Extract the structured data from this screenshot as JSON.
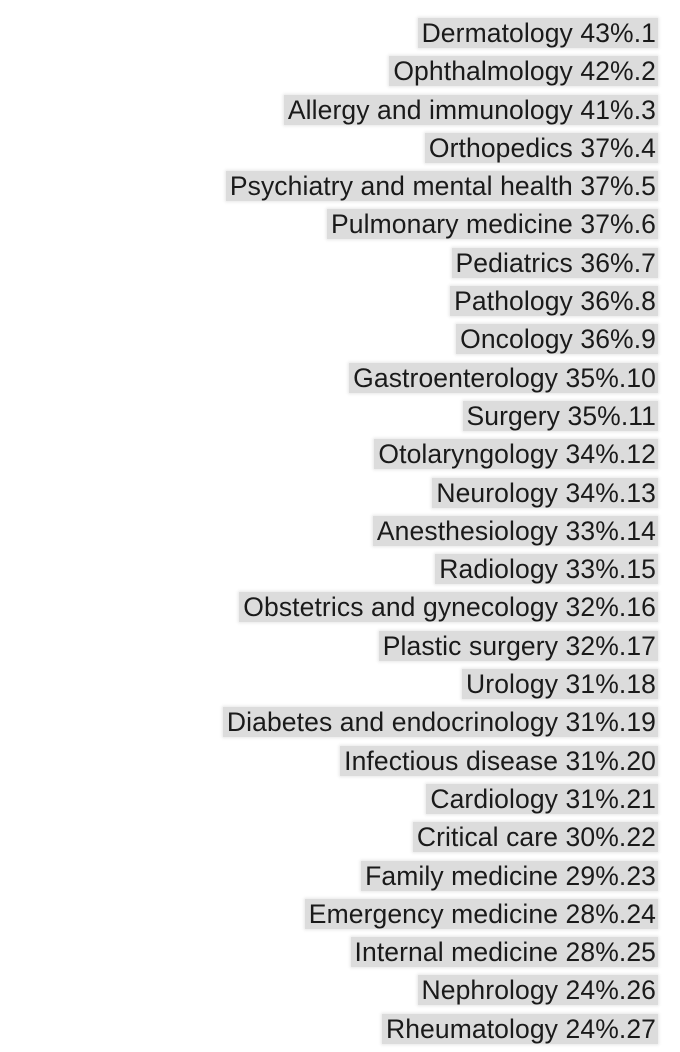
{
  "rows": [
    {
      "specialty": "Dermatology",
      "value": "43%.1"
    },
    {
      "specialty": "Ophthalmology",
      "value": "42%.2"
    },
    {
      "specialty": "Allergy and immunology",
      "value": "41%.3"
    },
    {
      "specialty": "Orthopedics",
      "value": "37%.4"
    },
    {
      "specialty": "Psychiatry and mental health",
      "value": "37%.5"
    },
    {
      "specialty": "Pulmonary medicine",
      "value": "37%.6"
    },
    {
      "specialty": "Pediatrics",
      "value": "36%.7"
    },
    {
      "specialty": "Pathology",
      "value": "36%.8"
    },
    {
      "specialty": "Oncology",
      "value": "36%.9"
    },
    {
      "specialty": "Gastroenterology",
      "value": "35%.10"
    },
    {
      "specialty": "Surgery",
      "value": "35%.11"
    },
    {
      "specialty": "Otolaryngology",
      "value": "34%.12"
    },
    {
      "specialty": "Neurology",
      "value": "34%.13"
    },
    {
      "specialty": "Anesthesiology",
      "value": "33%.14"
    },
    {
      "specialty": "Radiology",
      "value": "33%.15"
    },
    {
      "specialty": "Obstetrics and gynecology",
      "value": "32%.16"
    },
    {
      "specialty": "Plastic surgery",
      "value": "32%.17"
    },
    {
      "specialty": "Urology",
      "value": "31%.18"
    },
    {
      "specialty": "Diabetes and endocrinology",
      "value": "31%.19"
    },
    {
      "specialty": "Infectious disease",
      "value": "31%.20"
    },
    {
      "specialty": "Cardiology",
      "value": "31%.21"
    },
    {
      "specialty": "Critical care",
      "value": "30%.22"
    },
    {
      "specialty": "Family medicine",
      "value": "29%.23"
    },
    {
      "specialty": "Emergency medicine",
      "value": "28%.24"
    },
    {
      "specialty": "Internal medicine",
      "value": "28%.25"
    },
    {
      "specialty": "Nephrology",
      "value": "24%.26"
    },
    {
      "specialty": "Rheumatology",
      "value": "24%.27"
    }
  ],
  "colors": {
    "text": "#1a1a1a",
    "highlight": "#dcdcdc",
    "background": "#ffffff"
  }
}
